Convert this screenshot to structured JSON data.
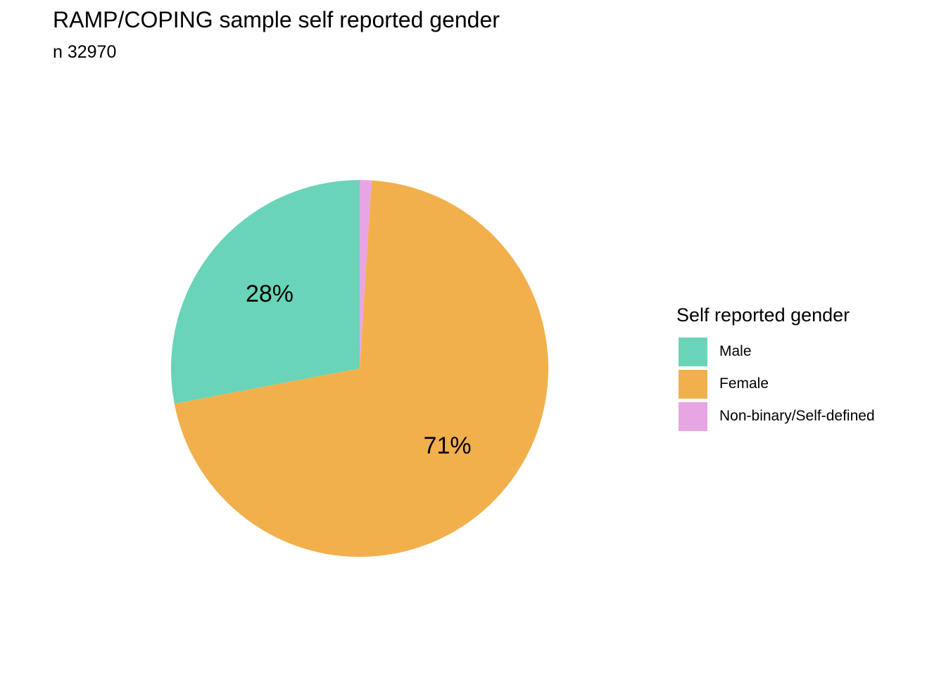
{
  "chart_data": {
    "type": "pie",
    "title": "RAMP/COPING sample self reported gender",
    "subtitle": "n 32970",
    "legend_title": "Self reported gender",
    "legend_position": "right",
    "categories": [
      "Male",
      "Female",
      "Non-binary/Self-defined"
    ],
    "values": [
      28,
      71,
      1
    ],
    "data_labels": [
      "28%",
      "71%",
      ""
    ],
    "colors": [
      "#69d4b8",
      "#f2b04d",
      "#e8a5e3"
    ]
  }
}
